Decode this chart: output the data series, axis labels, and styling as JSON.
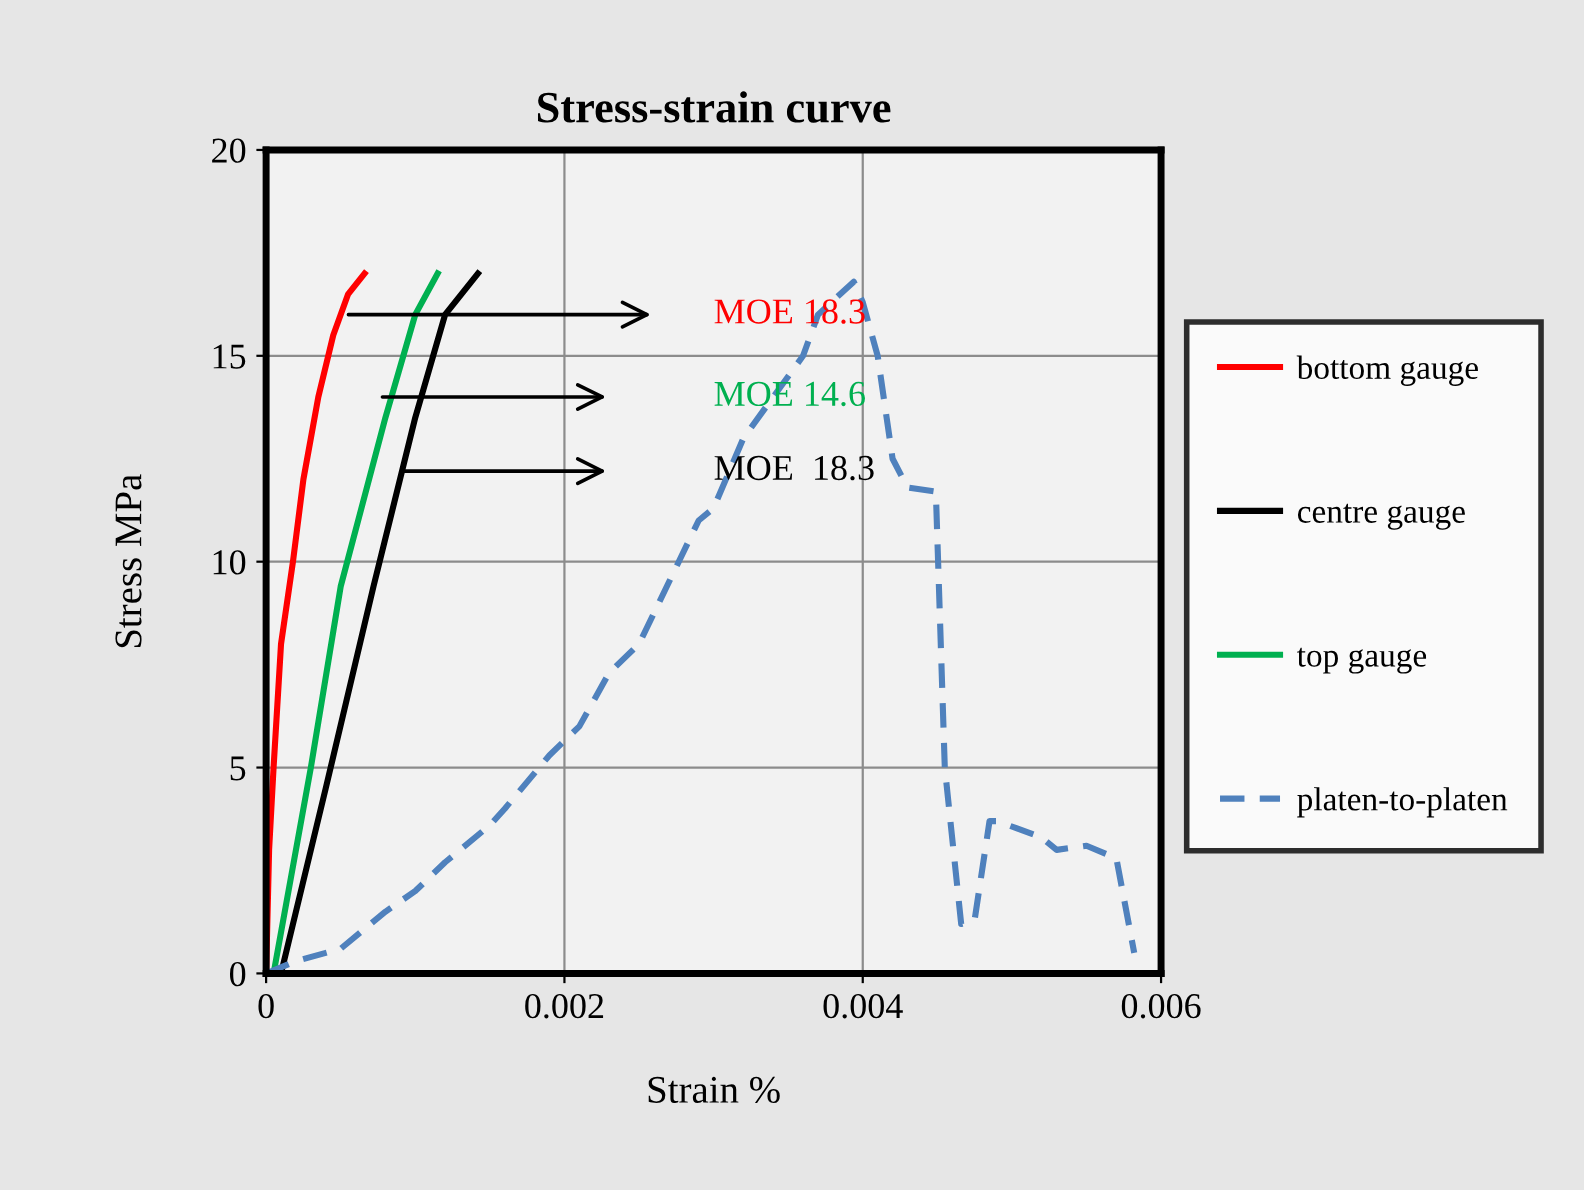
{
  "chart_data": {
    "type": "line",
    "title": "Stress-strain curve",
    "xlabel": "Strain %",
    "ylabel": "Stress MPa",
    "xlim": [
      0,
      0.006
    ],
    "xticks": [
      0,
      0.002,
      0.004,
      0.006
    ],
    "ylim": [
      0,
      20
    ],
    "yticks": [
      0,
      5,
      10,
      15,
      20
    ],
    "grid": true,
    "legend": "right",
    "series": [
      {
        "name": "bottom gauge",
        "color": "#ff0000",
        "line_style": "solid",
        "x": [
          0,
          2e-05,
          5e-05,
          0.0001,
          0.00018,
          0.00025,
          0.00035,
          0.00045,
          0.00055,
          0.00066
        ],
        "values": [
          0,
          3,
          5,
          8,
          10,
          12,
          14,
          15.5,
          16.5,
          17
        ]
      },
      {
        "name": "centre gauge",
        "color": "#000000",
        "line_style": "solid",
        "x": [
          0.0001,
          0.0004,
          0.00072,
          0.001,
          0.0012,
          0.00142
        ],
        "values": [
          0,
          4.5,
          9.4,
          13.5,
          16,
          17
        ]
      },
      {
        "name": "top gauge",
        "color": "#00b050",
        "line_style": "solid",
        "x": [
          5e-05,
          0.0003,
          0.0005,
          0.0008,
          0.001,
          0.00115
        ],
        "values": [
          0,
          5,
          9.4,
          13.5,
          16,
          17
        ]
      },
      {
        "name": "platen-to-platen",
        "color": "#4f81bd",
        "line_style": "dashed",
        "x": [
          0,
          0.0002,
          0.0005,
          0.0008,
          0.001,
          0.0012,
          0.0015,
          0.0016,
          0.0019,
          0.0021,
          0.0023,
          0.0025,
          0.0027,
          0.0029,
          0.003,
          0.0032,
          0.0034,
          0.0036,
          0.0037,
          0.00394,
          0.004,
          0.0041,
          0.0042,
          0.0043,
          0.00449,
          0.00455,
          0.00466,
          0.00475,
          0.00485,
          0.0049,
          0.0052,
          0.0053,
          0.0055,
          0.0057,
          0.00582
        ],
        "values": [
          0,
          0.3,
          0.6,
          1.5,
          2,
          2.7,
          3.6,
          4,
          5.3,
          6,
          7.3,
          8,
          9.5,
          11,
          11.3,
          13,
          14,
          15,
          16,
          16.8,
          16.3,
          15,
          12.5,
          11.8,
          11.7,
          5,
          1.2,
          1.3,
          3.7,
          3.7,
          3.3,
          3,
          3.1,
          2.8,
          0.5
        ]
      }
    ],
    "annotations": [
      "MOE 18.3",
      "MOE 14.6",
      "MOE  18.3"
    ]
  }
}
